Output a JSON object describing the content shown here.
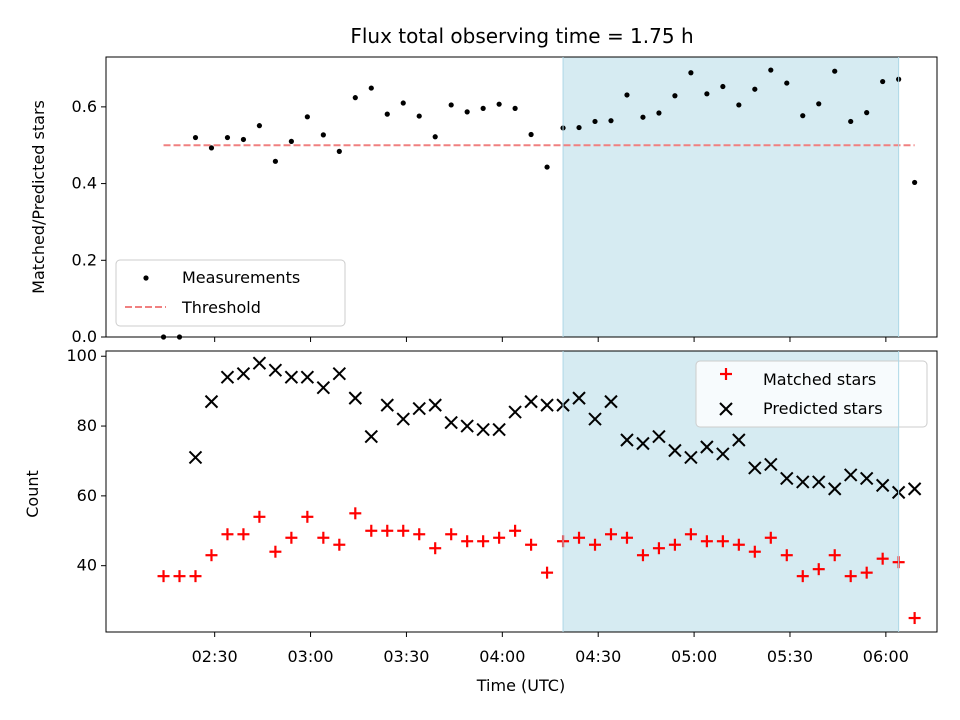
{
  "chart_data": [
    {
      "type": "scatter",
      "title": "Flux total observing time = 1.75 h",
      "ylabel": "Matched/Predicted stars",
      "xlabel": "",
      "ylim": [
        0,
        0.73
      ],
      "yticks": [
        0.0,
        0.2,
        0.4,
        0.6
      ],
      "ytick_labels": [
        "0.0",
        "0.2",
        "0.4",
        "0.6"
      ],
      "shaded_span": [
        "04:19",
        "06:04"
      ],
      "legend_position": "lower-left",
      "colors": {
        "measurements": "#000000",
        "threshold": "#f08080",
        "shade": "#add8e6"
      },
      "series": [
        {
          "name": "Measurements",
          "marker": "dot",
          "x": [
            "02:14",
            "02:19",
            "02:24",
            "02:29",
            "02:34",
            "02:39",
            "02:44",
            "02:49",
            "02:54",
            "02:59",
            "03:04",
            "03:09",
            "03:14",
            "03:19",
            "03:24",
            "03:29",
            "03:34",
            "03:39",
            "03:44",
            "03:49",
            "03:54",
            "03:59",
            "04:04",
            "04:09",
            "04:14",
            "04:19",
            "04:24",
            "04:29",
            "04:34",
            "04:39",
            "04:44",
            "04:49",
            "04:54",
            "04:59",
            "05:04",
            "05:09",
            "05:14",
            "05:19",
            "05:24",
            "05:29",
            "05:34",
            "05:39",
            "05:44",
            "05:49",
            "05:54",
            "05:59",
            "06:04",
            "06:09"
          ],
          "y": [
            0.0,
            0.0,
            0.52,
            0.493,
            0.52,
            0.515,
            0.551,
            0.458,
            0.51,
            0.574,
            0.527,
            0.484,
            0.624,
            0.649,
            0.581,
            0.61,
            0.576,
            0.522,
            0.605,
            0.587,
            0.596,
            0.607,
            0.596,
            0.528,
            0.443,
            0.545,
            0.546,
            0.562,
            0.564,
            0.631,
            0.573,
            0.584,
            0.629,
            0.689,
            0.634,
            0.653,
            0.605,
            0.646,
            0.696,
            0.662,
            0.577,
            0.608,
            0.693,
            0.562,
            0.585,
            0.666,
            0.672,
            0.403
          ]
        },
        {
          "name": "Threshold",
          "marker": "dashed-line",
          "x": [
            "02:14",
            "06:09"
          ],
          "y": [
            0.5,
            0.5
          ]
        }
      ]
    },
    {
      "type": "scatter",
      "title": "",
      "xlabel": "Time (UTC)",
      "ylabel": "Count",
      "ylim": [
        21,
        101.5
      ],
      "yticks": [
        40,
        60,
        80,
        100
      ],
      "ytick_labels": [
        "40",
        "60",
        "80",
        "100"
      ],
      "xticks": [
        "02:30",
        "03:00",
        "03:30",
        "04:00",
        "04:30",
        "05:00",
        "05:30",
        "06:00"
      ],
      "xlim": [
        "01:56",
        "06:16"
      ],
      "shaded_span": [
        "04:19",
        "06:04"
      ],
      "legend_position": "top-right",
      "colors": {
        "matched": "#ff0000",
        "predicted": "#000000",
        "shade": "#add8e6"
      },
      "series": [
        {
          "name": "Matched stars",
          "marker": "plus",
          "x": [
            "02:14",
            "02:19",
            "02:24",
            "02:29",
            "02:34",
            "02:39",
            "02:44",
            "02:49",
            "02:54",
            "02:59",
            "03:04",
            "03:09",
            "03:14",
            "03:19",
            "03:24",
            "03:29",
            "03:34",
            "03:39",
            "03:44",
            "03:49",
            "03:54",
            "03:59",
            "04:04",
            "04:09",
            "04:14",
            "04:19",
            "04:24",
            "04:29",
            "04:34",
            "04:39",
            "04:44",
            "04:49",
            "04:54",
            "04:59",
            "05:04",
            "05:09",
            "05:14",
            "05:19",
            "05:24",
            "05:29",
            "05:34",
            "05:39",
            "05:44",
            "05:49",
            "05:54",
            "05:59",
            "06:04",
            "06:09"
          ],
          "y": [
            37,
            37,
            37,
            43,
            49,
            49,
            54,
            44,
            48,
            54,
            48,
            46,
            55,
            50,
            50,
            50,
            49,
            45,
            49,
            47,
            47,
            48,
            50,
            46,
            38,
            47,
            48,
            46,
            49,
            48,
            43,
            45,
            46,
            49,
            47,
            47,
            46,
            44,
            48,
            43,
            37,
            39,
            43,
            37,
            38,
            42,
            41,
            25
          ]
        },
        {
          "name": "Predicted stars",
          "marker": "x",
          "x": [
            "02:24",
            "02:29",
            "02:34",
            "02:39",
            "02:44",
            "02:49",
            "02:54",
            "02:59",
            "03:04",
            "03:09",
            "03:14",
            "03:19",
            "03:24",
            "03:29",
            "03:34",
            "03:39",
            "03:44",
            "03:49",
            "03:54",
            "03:59",
            "04:04",
            "04:09",
            "04:14",
            "04:19",
            "04:24",
            "04:29",
            "04:34",
            "04:39",
            "04:44",
            "04:49",
            "04:54",
            "04:59",
            "05:04",
            "05:09",
            "05:14",
            "05:19",
            "05:24",
            "05:29",
            "05:34",
            "05:39",
            "05:44",
            "05:49",
            "05:54",
            "05:59",
            "06:04",
            "06:09"
          ],
          "y": [
            71,
            87,
            94,
            95,
            98,
            96,
            94,
            94,
            91,
            95,
            88,
            77,
            86,
            82,
            85,
            86,
            81,
            80,
            79,
            79,
            84,
            87,
            86,
            86,
            88,
            82,
            87,
            76,
            75,
            77,
            73,
            71,
            74,
            72,
            76,
            68,
            69,
            65,
            64,
            64,
            62,
            66,
            65,
            63,
            61,
            62
          ]
        }
      ]
    }
  ]
}
